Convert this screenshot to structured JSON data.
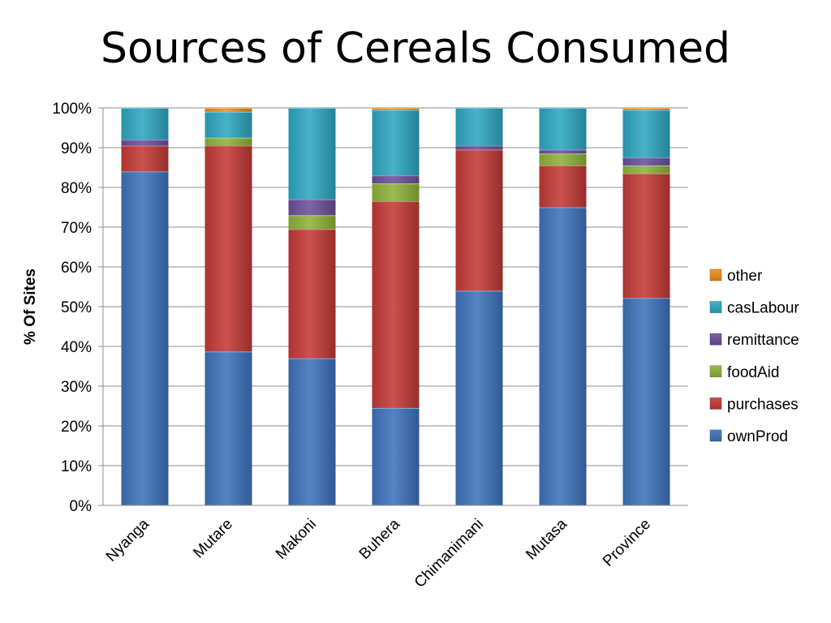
{
  "chart_data": {
    "type": "bar",
    "stacked": true,
    "title": "Sources of Cereals Consumed",
    "xlabel": "",
    "ylabel": "% Of Sites",
    "ylim": [
      0,
      100
    ],
    "yticks": [
      "0%",
      "10%",
      "20%",
      "30%",
      "40%",
      "50%",
      "60%",
      "70%",
      "80%",
      "90%",
      "100%"
    ],
    "grid": true,
    "legend_position": "right",
    "categories": [
      "Nyanga",
      "Mutare",
      "Makoni",
      "Buhera",
      "Chimanimani",
      "Mutasa",
      "Province"
    ],
    "series": [
      {
        "name": "ownProd",
        "color": "#3e73bd",
        "values": [
          84,
          38.7,
          37,
          24.5,
          54,
          75,
          52.2
        ]
      },
      {
        "name": "purchases",
        "color": "#c43a36",
        "values": [
          6.5,
          51.8,
          32.5,
          52,
          35.5,
          10.5,
          31.3
        ]
      },
      {
        "name": "foodAid",
        "color": "#8db33a",
        "values": [
          0,
          2,
          3.5,
          4.5,
          0,
          3,
          2
        ]
      },
      {
        "name": "remittance",
        "color": "#6c4f9c",
        "values": [
          1.5,
          0,
          4,
          2,
          1,
          1,
          2
        ]
      },
      {
        "name": "casLabour",
        "color": "#2ea7c2",
        "values": [
          8,
          6.5,
          23,
          16.5,
          9.5,
          10.5,
          12
        ]
      },
      {
        "name": "other",
        "color": "#f08c1a",
        "values": [
          0,
          1,
          0,
          0.5,
          0,
          0,
          0.5
        ]
      }
    ]
  }
}
